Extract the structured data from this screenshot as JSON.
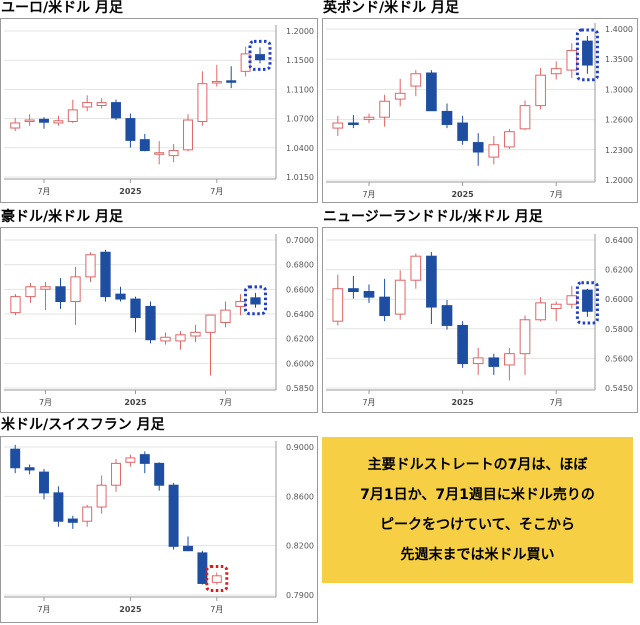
{
  "colors": {
    "up": "#e06666",
    "down": "#1e4ea1",
    "grid": "#e3e3e3",
    "axis": "#9a9a9a",
    "blue_marker": "#1f3fc9",
    "red_marker": "#e01818"
  },
  "note": {
    "lines": [
      "主要ドルストレートの7月は、ほぼ",
      "7月1日か、7月1週目に米ドル売りの",
      "ピークをつけていて、そこから",
      "先週末までは米ドル買い"
    ]
  },
  "chart_data": [
    {
      "type": "candlestick",
      "title": "ユーロ/米ドル 月足",
      "x_labels": [
        "7月",
        "2025",
        "7月"
      ],
      "y_ticks": [
        "1.2000",
        "1.1500",
        "1.1100",
        "1.0700",
        "1.0400",
        "1.0150"
      ],
      "ylim": [
        1.005,
        1.21
      ],
      "candles": [
        {
          "o": 1.071,
          "h": 1.085,
          "l": 1.067,
          "c": 1.078
        },
        {
          "o": 1.081,
          "h": 1.09,
          "l": 1.074,
          "c": 1.082
        },
        {
          "o": 1.083,
          "h": 1.086,
          "l": 1.07,
          "c": 1.079
        },
        {
          "o": 1.078,
          "h": 1.088,
          "l": 1.074,
          "c": 1.081
        },
        {
          "o": 1.08,
          "h": 1.11,
          "l": 1.078,
          "c": 1.096
        },
        {
          "o": 1.1,
          "h": 1.116,
          "l": 1.094,
          "c": 1.106
        },
        {
          "o": 1.102,
          "h": 1.112,
          "l": 1.098,
          "c": 1.106
        },
        {
          "o": 1.106,
          "h": 1.11,
          "l": 1.082,
          "c": 1.085
        },
        {
          "o": 1.084,
          "h": 1.091,
          "l": 1.044,
          "c": 1.054
        },
        {
          "o": 1.055,
          "h": 1.063,
          "l": 1.039,
          "c": 1.04
        },
        {
          "o": 1.036,
          "h": 1.053,
          "l": 1.021,
          "c": 1.037
        },
        {
          "o": 1.033,
          "h": 1.049,
          "l": 1.024,
          "c": 1.04
        },
        {
          "o": 1.041,
          "h": 1.09,
          "l": 1.039,
          "c": 1.082
        },
        {
          "o": 1.08,
          "h": 1.149,
          "l": 1.074,
          "c": 1.132
        },
        {
          "o": 1.134,
          "h": 1.158,
          "l": 1.128,
          "c": 1.135
        },
        {
          "o": 1.136,
          "h": 1.156,
          "l": 1.126,
          "c": 1.135
        },
        {
          "o": 1.149,
          "h": 1.183,
          "l": 1.142,
          "c": 1.173
        },
        {
          "o": 1.172,
          "h": 1.182,
          "l": 1.16,
          "c": 1.165
        }
      ],
      "highlight": {
        "index": 17,
        "color": "blue"
      }
    },
    {
      "type": "candlestick",
      "title": "英ポンド/米ドル 月足",
      "x_labels": [
        "7月",
        "2025",
        "7月"
      ],
      "y_ticks": [
        "1.4000",
        "1.3500",
        "1.3000",
        "1.2600",
        "1.2300",
        "1.2000"
      ],
      "ylim": [
        1.19,
        1.408
      ],
      "candles": [
        {
          "o": 1.263,
          "h": 1.28,
          "l": 1.252,
          "c": 1.27
        },
        {
          "o": 1.27,
          "h": 1.281,
          "l": 1.263,
          "c": 1.268
        },
        {
          "o": 1.275,
          "h": 1.283,
          "l": 1.27,
          "c": 1.278
        },
        {
          "o": 1.278,
          "h": 1.309,
          "l": 1.265,
          "c": 1.3
        },
        {
          "o": 1.303,
          "h": 1.331,
          "l": 1.293,
          "c": 1.311
        },
        {
          "o": 1.321,
          "h": 1.343,
          "l": 1.307,
          "c": 1.338
        },
        {
          "o": 1.339,
          "h": 1.343,
          "l": 1.288,
          "c": 1.287
        },
        {
          "o": 1.286,
          "h": 1.297,
          "l": 1.263,
          "c": 1.268
        },
        {
          "o": 1.27,
          "h": 1.28,
          "l": 1.24,
          "c": 1.246
        },
        {
          "o": 1.243,
          "h": 1.256,
          "l": 1.211,
          "c": 1.23
        },
        {
          "o": 1.223,
          "h": 1.252,
          "l": 1.213,
          "c": 1.24
        },
        {
          "o": 1.237,
          "h": 1.262,
          "l": 1.234,
          "c": 1.258
        },
        {
          "o": 1.262,
          "h": 1.301,
          "l": 1.26,
          "c": 1.294
        },
        {
          "o": 1.294,
          "h": 1.346,
          "l": 1.289,
          "c": 1.336
        },
        {
          "o": 1.338,
          "h": 1.355,
          "l": 1.33,
          "c": 1.345
        },
        {
          "o": 1.343,
          "h": 1.38,
          "l": 1.332,
          "c": 1.37
        },
        {
          "o": 1.383,
          "h": 1.39,
          "l": 1.338,
          "c": 1.35
        }
      ],
      "highlight": {
        "index": 16,
        "color": "blue"
      }
    },
    {
      "type": "candlestick",
      "title": "豪ドル/米ドル 月足",
      "x_labels": [
        "7月",
        "2025",
        "7月"
      ],
      "y_ticks": [
        "0.7000",
        "0.6800",
        "0.6600",
        "0.6400",
        "0.6200",
        "0.6000",
        "0.5850"
      ],
      "ylim": [
        0.581,
        0.706
      ],
      "candles": [
        {
          "o": 0.643,
          "h": 0.658,
          "l": 0.641,
          "c": 0.656
        },
        {
          "o": 0.656,
          "h": 0.667,
          "l": 0.651,
          "c": 0.664
        },
        {
          "o": 0.662,
          "h": 0.668,
          "l": 0.645,
          "c": 0.664
        },
        {
          "o": 0.664,
          "h": 0.671,
          "l": 0.646,
          "c": 0.652
        },
        {
          "o": 0.652,
          "h": 0.68,
          "l": 0.633,
          "c": 0.672
        },
        {
          "o": 0.672,
          "h": 0.692,
          "l": 0.668,
          "c": 0.69
        },
        {
          "o": 0.692,
          "h": 0.694,
          "l": 0.652,
          "c": 0.656
        },
        {
          "o": 0.658,
          "h": 0.664,
          "l": 0.652,
          "c": 0.654
        },
        {
          "o": 0.654,
          "h": 0.656,
          "l": 0.627,
          "c": 0.639
        },
        {
          "o": 0.648,
          "h": 0.652,
          "l": 0.618,
          "c": 0.621
        },
        {
          "o": 0.62,
          "h": 0.627,
          "l": 0.617,
          "c": 0.623
        },
        {
          "o": 0.62,
          "h": 0.628,
          "l": 0.613,
          "c": 0.625
        },
        {
          "o": 0.624,
          "h": 0.633,
          "l": 0.619,
          "c": 0.627
        },
        {
          "o": 0.627,
          "h": 0.641,
          "l": 0.592,
          "c": 0.641
        },
        {
          "o": 0.635,
          "h": 0.652,
          "l": 0.631,
          "c": 0.645
        },
        {
          "o": 0.648,
          "h": 0.658,
          "l": 0.641,
          "c": 0.652
        },
        {
          "o": 0.655,
          "h": 0.659,
          "l": 0.647,
          "c": 0.65
        }
      ],
      "highlight": {
        "index": 16,
        "color": "blue"
      }
    },
    {
      "type": "candlestick",
      "title": "ニュージーランドドル/米ドル 月足",
      "x_labels": [
        "7月",
        "2025",
        "7月"
      ],
      "y_ticks": [
        "0.6400",
        "0.6200",
        "0.6000",
        "0.5800",
        "0.5600",
        "0.5450"
      ],
      "ylim": [
        0.541,
        0.65
      ],
      "candles": [
        {
          "o": 0.589,
          "h": 0.622,
          "l": 0.586,
          "c": 0.612
        },
        {
          "o": 0.612,
          "h": 0.621,
          "l": 0.605,
          "c": 0.61
        },
        {
          "o": 0.61,
          "h": 0.615,
          "l": 0.602,
          "c": 0.606
        },
        {
          "o": 0.606,
          "h": 0.619,
          "l": 0.589,
          "c": 0.593
        },
        {
          "o": 0.594,
          "h": 0.625,
          "l": 0.59,
          "c": 0.618
        },
        {
          "o": 0.618,
          "h": 0.637,
          "l": 0.612,
          "c": 0.635
        },
        {
          "o": 0.635,
          "h": 0.638,
          "l": 0.587,
          "c": 0.599
        },
        {
          "o": 0.6,
          "h": 0.604,
          "l": 0.583,
          "c": 0.586
        },
        {
          "o": 0.586,
          "h": 0.589,
          "l": 0.556,
          "c": 0.559
        },
        {
          "o": 0.559,
          "h": 0.57,
          "l": 0.551,
          "c": 0.563
        },
        {
          "o": 0.563,
          "h": 0.566,
          "l": 0.551,
          "c": 0.557
        },
        {
          "o": 0.558,
          "h": 0.57,
          "l": 0.547,
          "c": 0.566
        },
        {
          "o": 0.566,
          "h": 0.593,
          "l": 0.551,
          "c": 0.59
        },
        {
          "o": 0.59,
          "h": 0.606,
          "l": 0.589,
          "c": 0.602
        },
        {
          "o": 0.598,
          "h": 0.603,
          "l": 0.589,
          "c": 0.601
        },
        {
          "o": 0.601,
          "h": 0.614,
          "l": 0.598,
          "c": 0.607
        },
        {
          "o": 0.611,
          "h": 0.612,
          "l": 0.592,
          "c": 0.596
        }
      ],
      "highlight": {
        "index": 16,
        "color": "blue"
      }
    },
    {
      "type": "candlestick",
      "title": "米ドル/スイスフラン 月足",
      "x_labels": [
        "7月",
        "2025",
        "7月"
      ],
      "y_ticks": [
        "0.9000",
        "0.8600",
        "0.8200",
        "0.7900"
      ],
      "ylim": [
        0.7805,
        0.9225
      ],
      "candles": [
        {
          "o": 0.915,
          "h": 0.919,
          "l": 0.893,
          "c": 0.898
        },
        {
          "o": 0.898,
          "h": 0.901,
          "l": 0.892,
          "c": 0.896
        },
        {
          "o": 0.894,
          "h": 0.897,
          "l": 0.869,
          "c": 0.875
        },
        {
          "o": 0.875,
          "h": 0.881,
          "l": 0.844,
          "c": 0.849
        },
        {
          "o": 0.851,
          "h": 0.854,
          "l": 0.842,
          "c": 0.848
        },
        {
          "o": 0.849,
          "h": 0.864,
          "l": 0.844,
          "c": 0.862
        },
        {
          "o": 0.862,
          "h": 0.891,
          "l": 0.856,
          "c": 0.882
        },
        {
          "o": 0.882,
          "h": 0.906,
          "l": 0.876,
          "c": 0.902
        },
        {
          "o": 0.903,
          "h": 0.91,
          "l": 0.899,
          "c": 0.907
        },
        {
          "o": 0.91,
          "h": 0.913,
          "l": 0.893,
          "c": 0.902
        },
        {
          "o": 0.902,
          "h": 0.903,
          "l": 0.877,
          "c": 0.882
        },
        {
          "o": 0.882,
          "h": 0.884,
          "l": 0.823,
          "c": 0.826
        },
        {
          "o": 0.826,
          "h": 0.835,
          "l": 0.822,
          "c": 0.822
        },
        {
          "o": 0.82,
          "h": 0.822,
          "l": 0.791,
          "c": 0.792
        },
        {
          "o": 0.793,
          "h": 0.802,
          "l": 0.791,
          "c": 0.799
        }
      ],
      "highlight": {
        "index": 14,
        "color": "red"
      }
    }
  ]
}
